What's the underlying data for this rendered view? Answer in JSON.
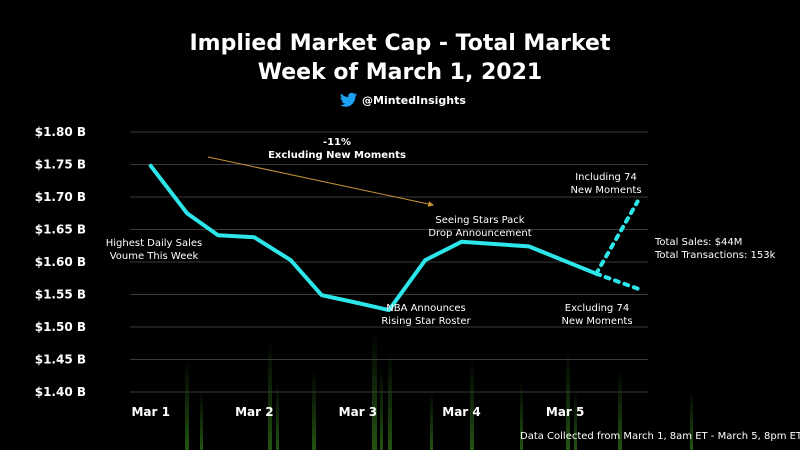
{
  "colors": {
    "background": "#000000",
    "line": "#2de6ea",
    "arrow": "#c8923a",
    "twitter": "#1da1f2",
    "grid": "#3a3a3a",
    "glow": "#2f7a1c"
  },
  "header": {
    "title_line1": "Implied Market Cap - Total Market",
    "title_line2": "Week of March 1, 2021",
    "handle": "@MintedInsights",
    "handle_icon": "twitter-bird-icon"
  },
  "chart_data": {
    "type": "line",
    "title": "Implied Market Cap - Total Market",
    "subtitle": "Week of March 1, 2021",
    "xlabel": "",
    "ylabel": "",
    "ylim": [
      1.4,
      1.8
    ],
    "xlim": [
      0.8,
      5.8
    ],
    "y_ticks": [
      1.4,
      1.45,
      1.5,
      1.55,
      1.6,
      1.65,
      1.7,
      1.75,
      1.8
    ],
    "y_tick_labels": [
      "$1.40 B",
      "$1.45 B",
      "$1.50 B",
      "$1.55 B",
      "$1.60 B",
      "$1.65 B",
      "$1.70 B",
      "$1.75 B",
      "$1.80 B"
    ],
    "x_ticks": [
      1,
      2,
      3,
      4,
      5
    ],
    "x_tick_labels": [
      "Mar 1",
      "Mar 2",
      "Mar 3",
      "Mar 4",
      "Mar 5"
    ],
    "grid": true,
    "series": [
      {
        "style": "solid",
        "x": [
          1.0,
          1.35,
          1.65,
          2.0,
          2.35,
          2.65,
          3.0,
          3.3,
          3.65,
          4.0,
          4.65,
          5.3
        ],
        "y": [
          1.748,
          1.675,
          1.641,
          1.638,
          1.603,
          1.549,
          1.537,
          1.526,
          1.603,
          1.631,
          1.624,
          1.582
        ]
      },
      {
        "style": "dotted",
        "x": [
          5.3,
          5.7
        ],
        "y": [
          1.582,
          1.693
        ]
      },
      {
        "style": "dotted",
        "x": [
          5.3,
          5.7
        ],
        "y": [
          1.582,
          1.559
        ]
      }
    ],
    "annotations": [
      {
        "lines": [
          "Highest Daily Sales",
          "Voume This Week"
        ]
      },
      {
        "lines": [
          "-11%",
          "Excluding New Moments"
        ]
      },
      {
        "lines": [
          "Seeing Stars Pack",
          "Drop Announcement"
        ]
      },
      {
        "lines": [
          "NBA Announces",
          "Rising Star Roster"
        ]
      },
      {
        "lines": [
          "Including 74",
          "New Moments"
        ]
      },
      {
        "lines": [
          "Excluding 74",
          "New Moments"
        ]
      }
    ]
  },
  "stats": {
    "total_sales": "Total Sales: $44M",
    "total_transactions": "Total Transactions: 153k"
  },
  "footer": {
    "note": "Data Collected from March 1, 8am ET - March 5, 8pm ET"
  }
}
